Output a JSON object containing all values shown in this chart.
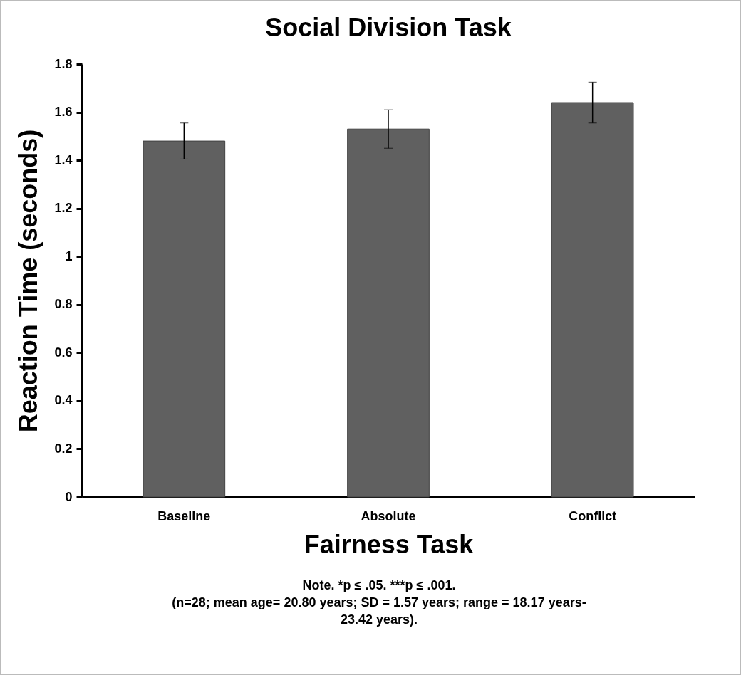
{
  "chart_data": {
    "type": "bar",
    "title": "Social Division Task",
    "xlabel": "Fairness Task",
    "ylabel": "Reaction Time (seconds)",
    "categories": [
      "Baseline",
      "Absolute",
      "Conflict"
    ],
    "values": [
      1.48,
      1.53,
      1.64
    ],
    "errors": [
      0.075,
      0.08,
      0.085
    ],
    "color": "#606060",
    "ylim": [
      0,
      1.8
    ],
    "yticks": [
      0,
      0.2,
      0.4,
      0.6,
      0.8,
      1,
      1.2,
      1.4,
      1.6,
      1.8
    ],
    "grid": false,
    "annotations": [
      "Note. *p ≤ .05. ***p ≤ .001.",
      "(n=28; mean age= 20.80 years; SD = 1.57 years; range = 18.17 years-23.42 years)."
    ]
  }
}
